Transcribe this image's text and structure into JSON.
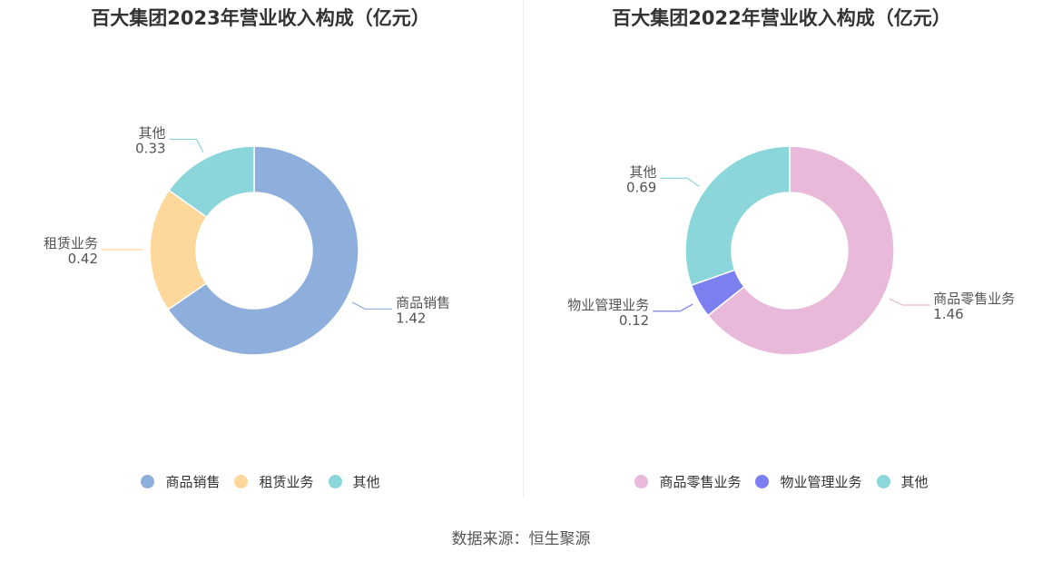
{
  "source_label": "数据来源：恒生聚源",
  "chart_data": [
    {
      "type": "pie",
      "title": "百大集团2023年营业收入构成（亿元）",
      "series": [
        {
          "name": "商品销售",
          "value": 1.42,
          "color": "#8eaedb"
        },
        {
          "name": "租赁业务",
          "value": 0.42,
          "color": "#fdd89a"
        },
        {
          "name": "其他",
          "value": 0.33,
          "color": "#8ad6da"
        }
      ],
      "legend": "bottom"
    },
    {
      "type": "pie",
      "title": "百大集团2022年营业收入构成（亿元）",
      "series": [
        {
          "name": "商品零售业务",
          "value": 1.46,
          "color": "#e8b9d9"
        },
        {
          "name": "物业管理业务",
          "value": 0.12,
          "color": "#7b7ff0"
        },
        {
          "name": "其他",
          "value": 0.69,
          "color": "#8ad6da"
        }
      ],
      "legend": "bottom"
    }
  ]
}
